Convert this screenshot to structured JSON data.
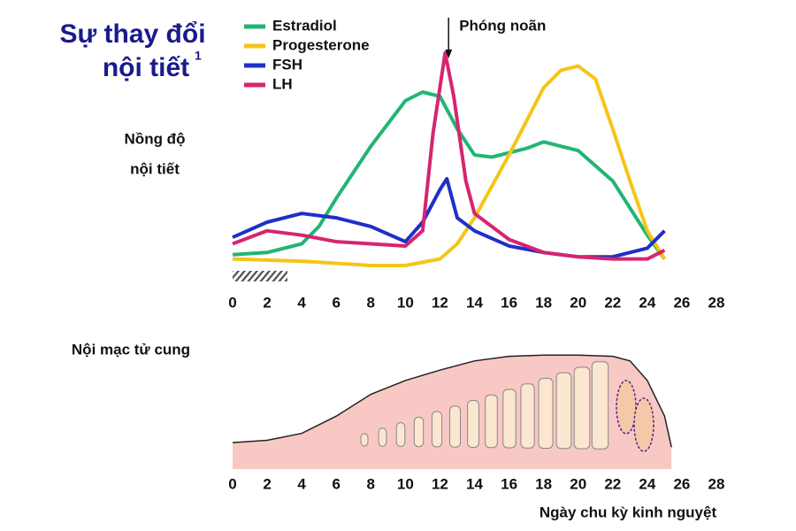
{
  "chart_data": [
    {
      "type": "line",
      "title": "Sự thay đổi nội tiết",
      "title_superscript": "1",
      "ylabel": [
        "Nồng độ",
        "nội tiết"
      ],
      "annotation": "Phóng noãn",
      "annotation_x": 12.5,
      "xlim": [
        0,
        28
      ],
      "xticks": [
        0,
        2,
        4,
        6,
        8,
        10,
        12,
        14,
        16,
        18,
        20,
        22,
        24,
        26,
        28
      ],
      "ylim": [
        0,
        100
      ],
      "series": [
        {
          "name": "Estradiol",
          "color": "#22b573",
          "x": [
            0,
            2,
            4,
            5,
            6,
            8,
            10,
            11,
            12,
            13,
            14,
            15,
            17,
            18,
            20,
            22,
            24,
            25
          ],
          "values": [
            5,
            6,
            10,
            18,
            31,
            55,
            76,
            80,
            78,
            63,
            51,
            50,
            54,
            57,
            53,
            39,
            14,
            3
          ]
        },
        {
          "name": "Progesterone",
          "color": "#f5c518",
          "x": [
            0,
            4,
            8,
            10,
            12,
            13,
            14,
            16,
            18,
            19,
            20,
            21,
            22,
            23,
            24,
            25
          ],
          "values": [
            3,
            2,
            0,
            0,
            3,
            10,
            22,
            51,
            82,
            90,
            92,
            86,
            63,
            39,
            16,
            3
          ]
        },
        {
          "name": "FSH",
          "color": "#1f2fc8",
          "x": [
            0,
            2,
            4,
            6,
            8,
            10,
            11,
            12,
            12.4,
            13,
            14,
            16,
            18,
            20,
            22,
            24,
            25
          ],
          "values": [
            13,
            20,
            24,
            22,
            18,
            11,
            20,
            35,
            40,
            22,
            16,
            9,
            6,
            4,
            4,
            8,
            16
          ]
        },
        {
          "name": "LH",
          "color": "#d6256e",
          "x": [
            0,
            2,
            4,
            6,
            8,
            10,
            11,
            11.6,
            12.3,
            12.8,
            13.5,
            14,
            16,
            18,
            20,
            22,
            24,
            25
          ],
          "values": [
            10,
            16,
            14,
            11,
            10,
            9,
            16,
            61,
            98,
            78,
            39,
            24,
            12,
            6,
            4,
            3,
            3,
            7
          ]
        }
      ]
    },
    {
      "type": "area",
      "title": "Nội mạc tử cung",
      "xlabel": "Ngày chu kỳ kinh nguyệt",
      "xlim": [
        0,
        28
      ],
      "xticks": [
        0,
        2,
        4,
        6,
        8,
        10,
        12,
        14,
        16,
        18,
        20,
        22,
        24,
        26,
        28
      ],
      "ylim": [
        0,
        100
      ],
      "color": "#f8c8c4",
      "x": [
        0,
        2,
        4,
        6,
        8,
        10,
        12,
        14,
        16,
        18,
        20,
        22,
        23,
        24,
        25,
        25.4
      ],
      "values": [
        23,
        25,
        31,
        46,
        65,
        77,
        86,
        94,
        98,
        99,
        99,
        98,
        94,
        77,
        46,
        19
      ]
    }
  ]
}
